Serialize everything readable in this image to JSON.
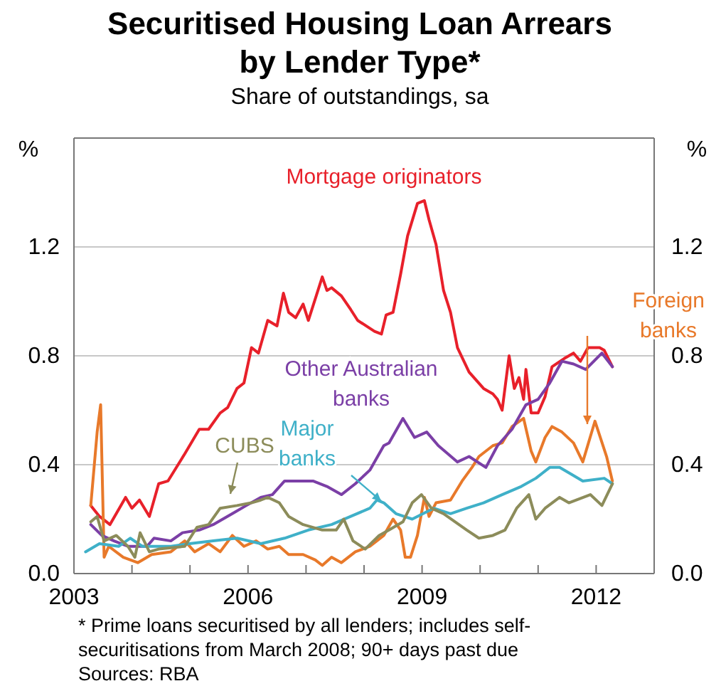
{
  "chart_data": {
    "type": "line",
    "title": "Securitised Housing Loan Arrears\nby Lender Type*",
    "subtitle": "Share of outstandings, sa",
    "ylabel": "%",
    "y2label": "%",
    "xlim": [
      2003,
      2013
    ],
    "xticks": [
      {
        "value": 2003,
        "label": "2003"
      },
      {
        "value": 2004,
        "label": null
      },
      {
        "value": 2005,
        "label": null
      },
      {
        "value": 2006,
        "label": "2006"
      },
      {
        "value": 2007,
        "label": null
      },
      {
        "value": 2008,
        "label": null
      },
      {
        "value": 2009,
        "label": "2009"
      },
      {
        "value": 2010,
        "label": null
      },
      {
        "value": 2011,
        "label": null
      },
      {
        "value": 2012,
        "label": "2012"
      },
      {
        "value": 2013,
        "label": null
      }
    ],
    "ylim": [
      0,
      1.6
    ],
    "yticks": [
      {
        "value": 0,
        "label": "0.0"
      },
      {
        "value": 0.4,
        "label": "0.4"
      },
      {
        "value": 0.8,
        "label": "0.8"
      },
      {
        "value": 1.2,
        "label": "1.2"
      }
    ],
    "y2lim": [
      0,
      1.6
    ],
    "y2ticks": [
      {
        "value": 0,
        "label": "0.0"
      },
      {
        "value": 0.4,
        "label": "0.4"
      },
      {
        "value": 0.8,
        "label": "0.8"
      },
      {
        "value": 1.2,
        "label": "1.2"
      }
    ],
    "grid": "y",
    "marker": "none",
    "line_style": "solid",
    "series": [
      {
        "name": "Mortgage originators",
        "color": "#e8202a",
        "x": [
          2003.29,
          2003.44,
          2003.62,
          2003.89,
          2004.0,
          2004.13,
          2004.3,
          2004.46,
          2004.62,
          2004.91,
          2005.16,
          2005.32,
          2005.52,
          2005.65,
          2005.81,
          2005.93,
          2006.06,
          2006.18,
          2006.34,
          2006.5,
          2006.61,
          2006.7,
          2006.82,
          2006.95,
          2007.04,
          2007.28,
          2007.36,
          2007.44,
          2007.61,
          2007.77,
          2007.89,
          2008.18,
          2008.3,
          2008.38,
          2008.5,
          2008.63,
          2008.75,
          2008.92,
          2009.04,
          2009.12,
          2009.24,
          2009.37,
          2009.49,
          2009.61,
          2009.81,
          2010.06,
          2010.22,
          2010.3,
          2010.38,
          2010.5,
          2010.59,
          2010.67,
          2010.75,
          2010.79,
          2010.88,
          2011.0,
          2011.12,
          2011.24,
          2011.45,
          2011.61,
          2011.73,
          2011.86,
          2012.06,
          2012.14,
          2012.28
        ],
        "values": [
          0.25,
          0.21,
          0.18,
          0.28,
          0.24,
          0.27,
          0.21,
          0.33,
          0.34,
          0.44,
          0.53,
          0.53,
          0.59,
          0.61,
          0.68,
          0.7,
          0.83,
          0.81,
          0.93,
          0.91,
          1.03,
          0.96,
          0.94,
          0.99,
          0.93,
          1.09,
          1.04,
          1.05,
          1.02,
          0.97,
          0.93,
          0.89,
          0.88,
          0.95,
          0.96,
          1.1,
          1.24,
          1.36,
          1.37,
          1.3,
          1.21,
          1.04,
          0.96,
          0.83,
          0.74,
          0.68,
          0.66,
          0.64,
          0.6,
          0.8,
          0.68,
          0.72,
          0.64,
          0.75,
          0.59,
          0.59,
          0.65,
          0.76,
          0.79,
          0.81,
          0.78,
          0.83,
          0.83,
          0.82,
          0.76
        ]
      },
      {
        "name": "Foreign banks",
        "color": "#e8792a",
        "x": [
          2003.29,
          2003.4,
          2003.46,
          2003.52,
          2003.6,
          2003.85,
          2004.1,
          2004.34,
          2004.67,
          2004.91,
          2005.08,
          2005.32,
          2005.52,
          2005.73,
          2005.93,
          2006.14,
          2006.34,
          2006.54,
          2006.7,
          2006.95,
          2007.16,
          2007.28,
          2007.44,
          2007.61,
          2007.85,
          2008.1,
          2008.34,
          2008.5,
          2008.63,
          2008.71,
          2008.8,
          2008.92,
          2009.04,
          2009.12,
          2009.24,
          2009.49,
          2009.69,
          2009.86,
          2009.98,
          2010.22,
          2010.38,
          2010.55,
          2010.75,
          2010.88,
          2010.96,
          2011.12,
          2011.24,
          2011.41,
          2011.61,
          2011.77,
          2011.98,
          2012.18,
          2012.28
        ],
        "values": [
          0.25,
          0.52,
          0.62,
          0.06,
          0.1,
          0.06,
          0.04,
          0.07,
          0.08,
          0.12,
          0.08,
          0.11,
          0.08,
          0.14,
          0.1,
          0.12,
          0.09,
          0.1,
          0.07,
          0.07,
          0.05,
          0.03,
          0.06,
          0.04,
          0.08,
          0.1,
          0.14,
          0.2,
          0.16,
          0.06,
          0.06,
          0.14,
          0.28,
          0.21,
          0.26,
          0.27,
          0.34,
          0.39,
          0.43,
          0.47,
          0.48,
          0.54,
          0.57,
          0.45,
          0.41,
          0.5,
          0.54,
          0.52,
          0.48,
          0.41,
          0.56,
          0.43,
          0.34
        ]
      },
      {
        "name": "Other Australian banks",
        "color": "#7b3fa6",
        "x": [
          2003.29,
          2003.48,
          2003.69,
          2003.93,
          2004.26,
          2004.38,
          2004.67,
          2004.87,
          2005.16,
          2005.4,
          2005.73,
          2005.97,
          2006.22,
          2006.42,
          2006.63,
          2007.12,
          2007.36,
          2007.61,
          2007.85,
          2008.1,
          2008.34,
          2008.43,
          2008.67,
          2008.87,
          2009.08,
          2009.28,
          2009.61,
          2009.81,
          2010.1,
          2010.3,
          2010.55,
          2010.79,
          2011.0,
          2011.2,
          2011.41,
          2011.61,
          2011.82,
          2012.1,
          2012.28
        ],
        "values": [
          0.18,
          0.14,
          0.12,
          0.1,
          0.1,
          0.13,
          0.12,
          0.15,
          0.16,
          0.18,
          0.22,
          0.25,
          0.28,
          0.29,
          0.34,
          0.34,
          0.32,
          0.29,
          0.33,
          0.38,
          0.47,
          0.48,
          0.57,
          0.5,
          0.52,
          0.47,
          0.41,
          0.43,
          0.39,
          0.47,
          0.53,
          0.62,
          0.64,
          0.7,
          0.78,
          0.77,
          0.75,
          0.81,
          0.76
        ]
      },
      {
        "name": "Major banks",
        "color": "#3fb0c8",
        "x": [
          2003.2,
          2003.44,
          2003.77,
          2003.97,
          2004.18,
          2004.67,
          2004.99,
          2005.4,
          2005.81,
          2006.22,
          2006.63,
          2007.04,
          2007.44,
          2007.77,
          2008.1,
          2008.22,
          2008.34,
          2008.55,
          2008.83,
          2009.2,
          2009.49,
          2009.77,
          2010.06,
          2010.38,
          2010.71,
          2010.96,
          2011.2,
          2011.37,
          2011.61,
          2011.77,
          2012.14,
          2012.28
        ],
        "values": [
          0.08,
          0.11,
          0.1,
          0.13,
          0.1,
          0.1,
          0.11,
          0.12,
          0.13,
          0.11,
          0.13,
          0.16,
          0.18,
          0.21,
          0.24,
          0.27,
          0.26,
          0.22,
          0.2,
          0.24,
          0.22,
          0.24,
          0.26,
          0.29,
          0.32,
          0.35,
          0.39,
          0.39,
          0.36,
          0.34,
          0.35,
          0.33
        ]
      },
      {
        "name": "CUBS",
        "color": "#8c8c5a",
        "x": [
          2003.29,
          2003.4,
          2003.52,
          2003.73,
          2003.93,
          2004.05,
          2004.14,
          2004.3,
          2004.46,
          2004.91,
          2005.12,
          2005.32,
          2005.52,
          2005.81,
          2006.06,
          2006.22,
          2006.34,
          2006.54,
          2006.7,
          2006.95,
          2007.28,
          2007.52,
          2007.65,
          2007.81,
          2008.02,
          2008.26,
          2008.43,
          2008.67,
          2008.83,
          2008.99,
          2009.16,
          2009.37,
          2009.57,
          2009.77,
          2009.98,
          2010.22,
          2010.43,
          2010.63,
          2010.84,
          2010.96,
          2011.12,
          2011.37,
          2011.53,
          2011.9,
          2012.1,
          2012.28
        ],
        "values": [
          0.19,
          0.21,
          0.12,
          0.14,
          0.1,
          0.06,
          0.15,
          0.08,
          0.09,
          0.1,
          0.17,
          0.18,
          0.24,
          0.25,
          0.26,
          0.27,
          0.28,
          0.26,
          0.21,
          0.18,
          0.16,
          0.16,
          0.2,
          0.12,
          0.09,
          0.14,
          0.16,
          0.19,
          0.26,
          0.29,
          0.24,
          0.22,
          0.19,
          0.16,
          0.13,
          0.14,
          0.16,
          0.24,
          0.29,
          0.2,
          0.24,
          0.28,
          0.26,
          0.29,
          0.25,
          0.33
        ]
      }
    ],
    "annotations": [
      "* Prime loans securitised by all lenders; includes self-\nsecuritisations from March 2008; 90+ days past due",
      "Sources: RBA"
    ]
  }
}
